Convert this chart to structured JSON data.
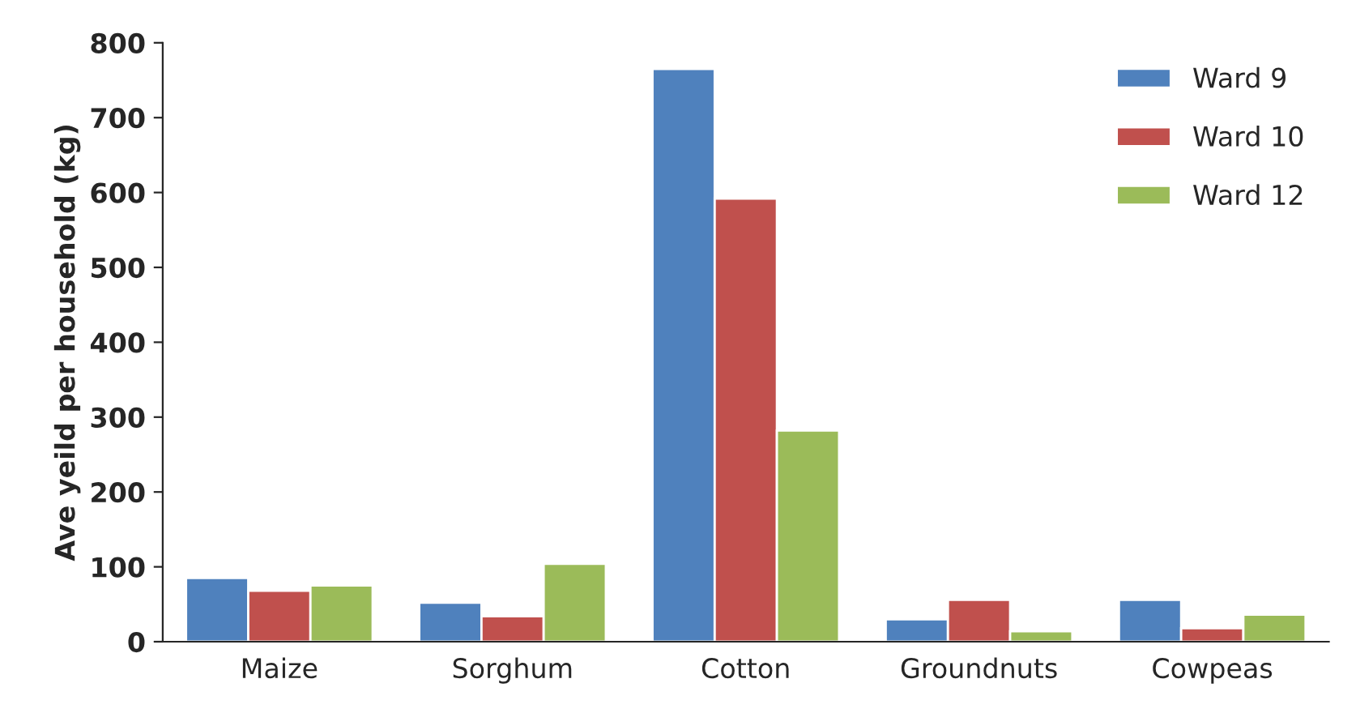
{
  "chart_data": {
    "type": "bar",
    "ylabel": "Ave yeild per household (kg)",
    "categories": [
      "Maize",
      "Sorghum",
      "Cotton",
      "Groundnuts",
      "Cowpeas"
    ],
    "series": [
      {
        "name": "Ward 9",
        "color": "#4f81bd",
        "values": [
          85,
          52,
          765,
          30,
          56
        ]
      },
      {
        "name": "Ward 10",
        "color": "#c0504d",
        "values": [
          68,
          34,
          592,
          56,
          18
        ]
      },
      {
        "name": "Ward 12",
        "color": "#9bbb59",
        "values": [
          75,
          104,
          282,
          14,
          36
        ]
      }
    ],
    "ylim": [
      0,
      800
    ],
    "yticks": [
      0,
      100,
      200,
      300,
      400,
      500,
      600,
      700,
      800
    ],
    "grid": false,
    "legend": "top right"
  }
}
